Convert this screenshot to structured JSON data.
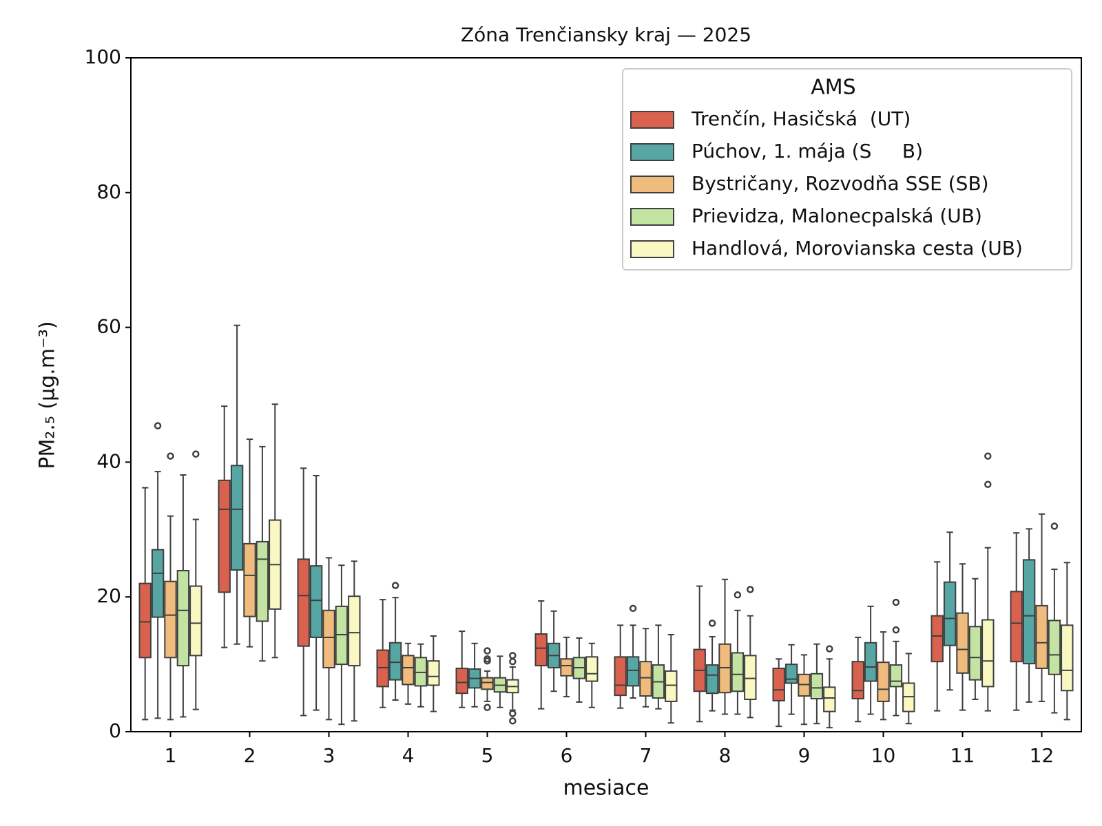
{
  "chart_data": {
    "type": "box",
    "title": "Zóna Trenčiansky kraj —  2025",
    "x_label": "mesiace",
    "y_label": "PM₂.₅  (μg.m⁻³)",
    "categories": [
      1,
      2,
      3,
      4,
      5,
      6,
      7,
      8,
      9,
      10,
      11,
      12
    ],
    "ylim": [
      0,
      100
    ],
    "yticks": [
      0,
      20,
      40,
      60,
      80,
      100
    ],
    "legend_title": "AMS",
    "legend_position": "upper right",
    "series": [
      {
        "name": "Trenčín, Hasičská  (UT)",
        "color": "#d9624f",
        "whislo": [
          1.8,
          12.5,
          2.4,
          3.6,
          3.6,
          3.4,
          3.5,
          1.5,
          0.8,
          1.5,
          3.1,
          3.2
        ],
        "q1": [
          11,
          20.7,
          12.7,
          6.7,
          5.7,
          9.8,
          5.4,
          6,
          4.6,
          4.9,
          10.4,
          10.4
        ],
        "median": [
          16.3,
          33,
          20.2,
          9.5,
          7.3,
          12.4,
          6.9,
          9.1,
          6.2,
          6.1,
          14.2,
          16.1
        ],
        "q3": [
          22,
          37.3,
          25.6,
          12.1,
          9.4,
          14.5,
          11.1,
          12.2,
          9.4,
          10.4,
          17.2,
          20.8
        ],
        "whishi": [
          36.2,
          48.3,
          39.1,
          19.6,
          14.9,
          19.4,
          15.8,
          21.6,
          10.8,
          14,
          25.2,
          29.5
        ],
        "outliers": [
          [],
          [],
          [],
          [],
          [],
          [],
          [],
          [],
          [],
          [],
          [],
          []
        ]
      },
      {
        "name": "Púchov, 1. mája (S     B)",
        "color": "#56a6a3",
        "whislo": [
          2,
          13,
          3.2,
          4.7,
          3.7,
          6,
          5,
          3.1,
          2.6,
          2.6,
          6.2,
          4.4
        ],
        "q1": [
          17,
          24,
          14,
          7.7,
          6.5,
          9.5,
          6.8,
          5.7,
          7.2,
          7.5,
          12.8,
          10.1
        ],
        "median": [
          23.5,
          33,
          19.5,
          10.3,
          7.9,
          11.3,
          9.1,
          8.4,
          7.8,
          9.6,
          16.8,
          17.2
        ],
        "q3": [
          27,
          39.5,
          24.6,
          13.2,
          9.3,
          13.1,
          11.1,
          9.9,
          10,
          13.2,
          22.2,
          25.5
        ],
        "whishi": [
          38.6,
          60.3,
          38,
          19.9,
          13.1,
          17.9,
          15.8,
          14.1,
          12.9,
          18.6,
          29.6,
          30.1
        ],
        "outliers": [
          [
            45.4
          ],
          [],
          [],
          [
            21.7
          ],
          [],
          [],
          [
            18.3
          ],
          [
            16.1
          ],
          [],
          [],
          [],
          []
        ]
      },
      {
        "name": "Bystričany, Rozvodňa SSE (SB)",
        "color": "#f0bc7d",
        "whislo": [
          1.8,
          12.6,
          1.8,
          4.1,
          4.5,
          5.2,
          3.7,
          2.6,
          1.1,
          1.8,
          3.2,
          4.5
        ],
        "q1": [
          11,
          17.1,
          9.5,
          7,
          6.3,
          8.3,
          5.3,
          5.8,
          5.3,
          4.5,
          8.7,
          9.4
        ],
        "median": [
          17.3,
          23.2,
          14,
          9.5,
          7.3,
          9.8,
          8,
          9.5,
          7,
          6.3,
          12.2,
          13.2
        ],
        "q3": [
          22.3,
          27.9,
          18,
          11.3,
          8,
          10.8,
          10.4,
          13,
          8.5,
          10.3,
          17.6,
          18.7
        ],
        "whishi": [
          32,
          43.4,
          25.8,
          13.1,
          9,
          14,
          15.3,
          22.6,
          11.4,
          14.8,
          24.9,
          32.3
        ],
        "outliers": [
          [
            40.9
          ],
          [],
          [],
          [],
          [
            3.6,
            10.5,
            10.8,
            12
          ],
          [],
          [],
          [],
          [],
          [],
          [],
          []
        ]
      },
      {
        "name": "Prievidza, Malonecpalská (UB)",
        "color": "#c3e3a3",
        "whislo": [
          2.2,
          10.5,
          1.1,
          3.7,
          3.6,
          4.4,
          3.4,
          2.6,
          1.2,
          2.4,
          4.8,
          2.8
        ],
        "q1": [
          9.8,
          16.4,
          10,
          6.8,
          5.9,
          7.9,
          5,
          6,
          4.9,
          6.7,
          7.7,
          8.5
        ],
        "median": [
          18,
          25.6,
          14.4,
          8.8,
          6.9,
          9.5,
          7.4,
          8.5,
          6.5,
          7.5,
          11,
          11.4
        ],
        "q3": [
          23.9,
          28.2,
          18.6,
          11,
          8,
          11,
          9.9,
          11.7,
          8.6,
          9.9,
          15.6,
          16.5
        ],
        "whishi": [
          38.1,
          42.3,
          24.7,
          13,
          11.2,
          13.9,
          15.8,
          18,
          13,
          13.4,
          22.7,
          24.1
        ],
        "outliers": [
          [],
          [],
          [],
          [],
          [],
          [],
          [],
          [
            20.3
          ],
          [],
          [
            15.1,
            19.2
          ],
          [],
          [
            30.5
          ]
        ]
      },
      {
        "name": "Handlová, Morovianska cesta (UB)",
        "color": "#f9f8c3",
        "whislo": [
          3.3,
          11,
          1.6,
          3,
          3.2,
          3.6,
          1.3,
          2.1,
          0.6,
          1.2,
          3.1,
          1.8
        ],
        "q1": [
          11.3,
          18.2,
          9.8,
          6.9,
          5.8,
          7.5,
          4.5,
          4.8,
          3,
          3,
          6.7,
          6.1
        ],
        "median": [
          16.1,
          24.8,
          14.7,
          8.2,
          6.7,
          8.6,
          6.9,
          7.9,
          5,
          5.2,
          10.5,
          9.1
        ],
        "q3": [
          21.6,
          31.4,
          20.1,
          10.5,
          7.7,
          11.1,
          9,
          11.3,
          6.6,
          7.2,
          16.6,
          15.8
        ],
        "whishi": [
          31.5,
          48.6,
          25.3,
          14.2,
          9.6,
          13.1,
          14.4,
          17.2,
          10.8,
          11.6,
          27.3,
          25.1
        ],
        "outliers": [
          [
            41.2
          ],
          [],
          [],
          [],
          [
            1.6,
            2.7,
            10.4,
            11.3
          ],
          [],
          [],
          [
            21.1
          ],
          [
            12.3
          ],
          [],
          [
            36.7,
            40.9
          ],
          []
        ]
      }
    ]
  }
}
